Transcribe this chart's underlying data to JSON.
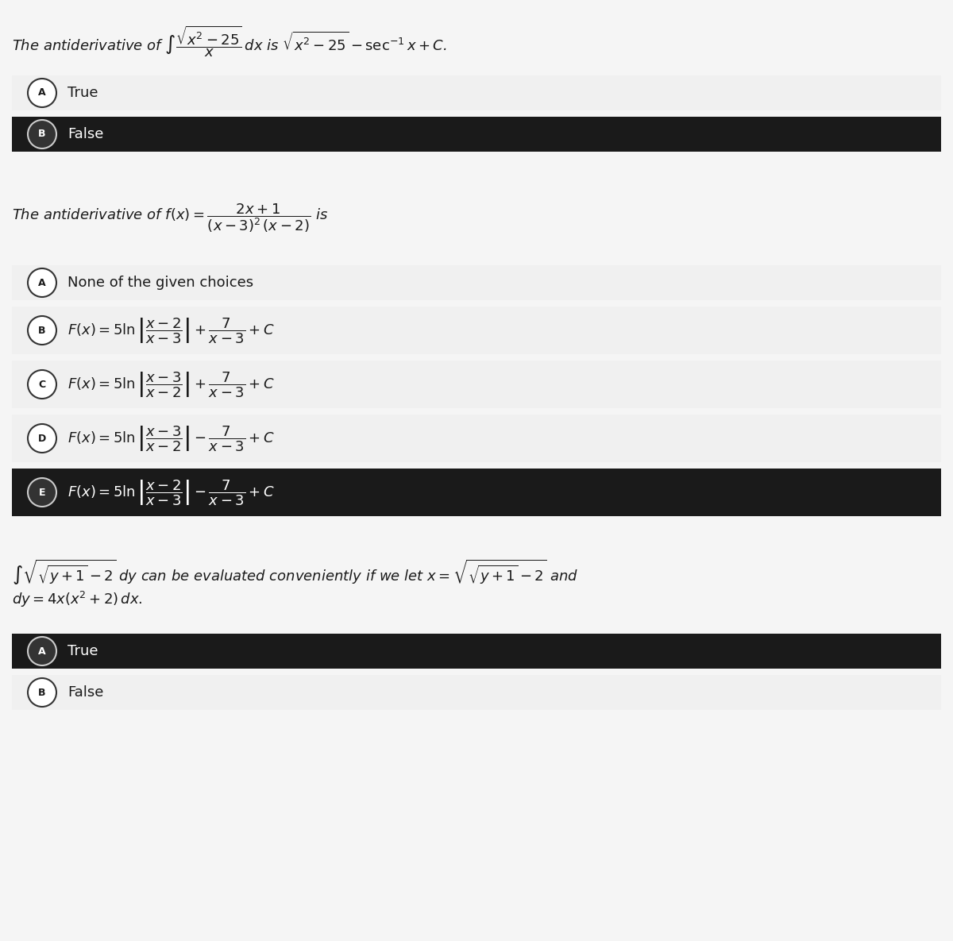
{
  "bg_color": "#f5f5f5",
  "white": "#ffffff",
  "dark": "#1a1a1a",
  "light_row": "#f0f0f0",
  "text_color_dark": "#ffffff",
  "text_color_light": "#1a1a1a",
  "q1_statement": "The antiderivative of $\\int \\dfrac{\\sqrt{x^2 - 25}}{x}\\,dx$ is $\\sqrt{x^2-25} - \\sec^{-1}x + C$.",
  "q1_options": [
    {
      "label": "A",
      "text": "True",
      "selected": false
    },
    {
      "label": "B",
      "text": "False",
      "selected": true
    }
  ],
  "q2_statement": "The antiderivative of $f(x) = \\dfrac{2x+1}{(x-3)^2(x-2)}$ is",
  "q2_options": [
    {
      "label": "A",
      "text": "None of the given choices",
      "selected": false,
      "has_formula": false
    },
    {
      "label": "B",
      "text": "$F(x) = 5\\ln\\left|\\dfrac{x-2}{x-3}\\right| + \\dfrac{7}{x-3} + C$",
      "selected": false,
      "has_formula": true
    },
    {
      "label": "C",
      "text": "$F(x) = 5\\ln\\left|\\dfrac{x-3}{x-2}\\right| + \\dfrac{7}{x-3} + C$",
      "selected": false,
      "has_formula": true
    },
    {
      "label": "D",
      "text": "$F(x) = 5\\ln\\left|\\dfrac{x-3}{x-2}\\right| - \\dfrac{7}{x-3} + C$",
      "selected": false,
      "has_formula": true
    },
    {
      "label": "E",
      "text": "$F(x) = 5\\ln\\left|\\dfrac{x-2}{x-3}\\right| - \\dfrac{7}{x-3} + C$",
      "selected": true,
      "has_formula": true
    }
  ],
  "q3_statement": "$\\int\\sqrt{\\sqrt{y+1}-2}\\;dy$ can be evaluated conveniently if we let $x = \\sqrt{\\sqrt{y+1}-2}$ and\n$dy = 4x(x^2+2)dx$.",
  "q3_options": [
    {
      "label": "A",
      "text": "True",
      "selected": true
    },
    {
      "label": "B",
      "text": "False",
      "selected": false
    }
  ]
}
